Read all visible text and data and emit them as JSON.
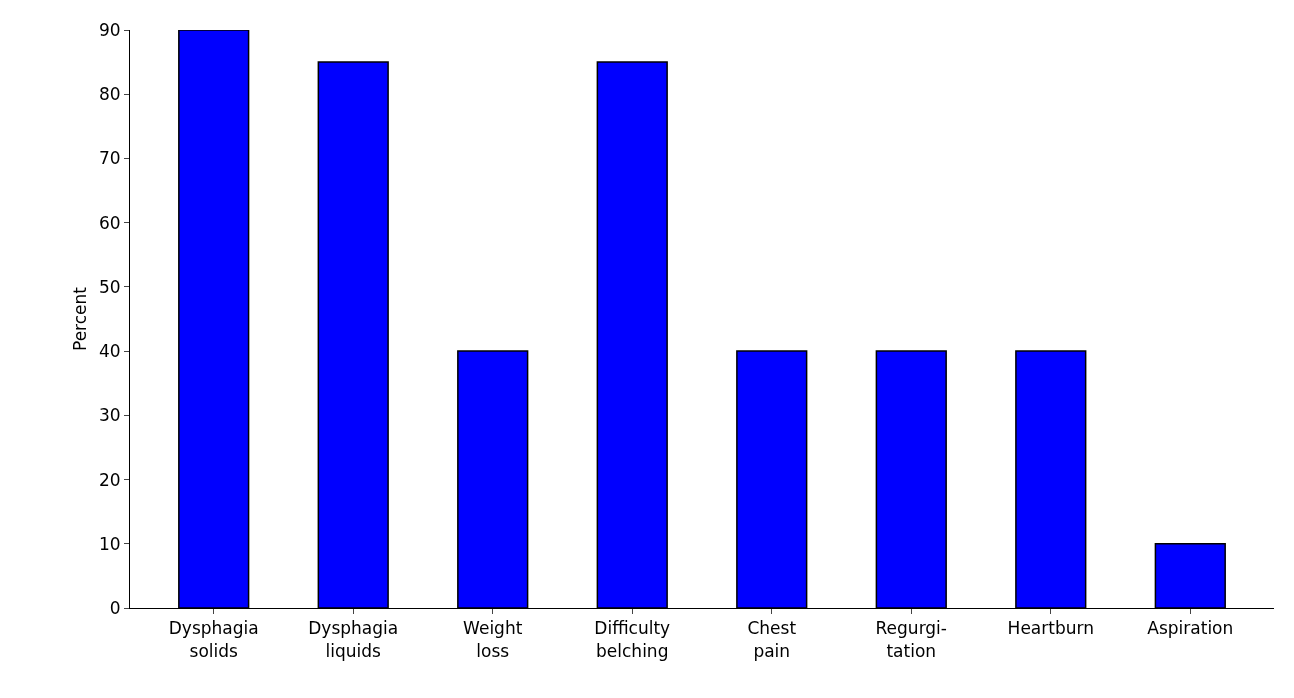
{
  "chart_data": {
    "type": "bar",
    "ylabel": "Percent",
    "categories": [
      "Dysphagia\nsolids",
      "Dysphagia\nliquids",
      "Weight\nloss",
      "Difficulty\nbelching",
      "Chest\npain",
      "Regurgi-\ntation",
      "Heartburn",
      "Aspiration"
    ],
    "values": [
      90,
      85,
      40,
      85,
      40,
      40,
      40,
      10
    ],
    "color": "#0000ff",
    "ylim": [
      0,
      90
    ],
    "yticks": [
      0,
      10,
      20,
      30,
      40,
      50,
      60,
      70,
      80,
      90
    ],
    "grid": false
  }
}
